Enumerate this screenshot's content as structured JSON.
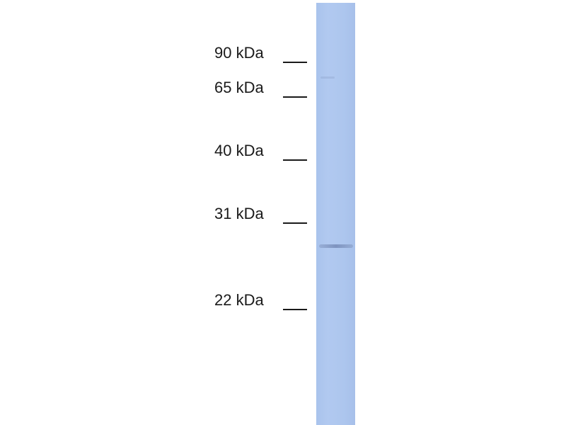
{
  "markers": [
    {
      "label": "90 kDa"
    },
    {
      "label": "65 kDa"
    },
    {
      "label": "40 kDa"
    },
    {
      "label": "31 kDa"
    },
    {
      "label": "22 kDa"
    }
  ],
  "lane": {
    "color": "#adc6ee",
    "band_color": "#7f93bd"
  }
}
